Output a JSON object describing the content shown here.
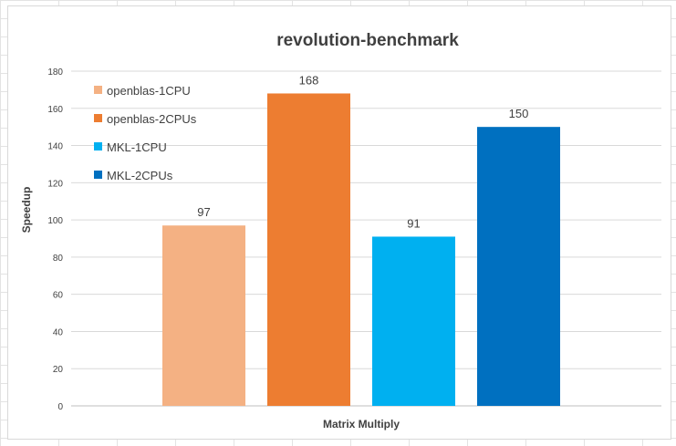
{
  "chart_data": {
    "type": "bar",
    "title": "revolution-benchmark",
    "xlabel": "Matrix Multiply",
    "ylabel": "Speedup",
    "ylim": [
      0,
      180
    ],
    "yticks": [
      0,
      20,
      40,
      60,
      80,
      100,
      120,
      140,
      160,
      180
    ],
    "grid": true,
    "legend_position": "top-left",
    "categories": [
      "Matrix Multiply"
    ],
    "series": [
      {
        "name": "openblas-1CPU",
        "values": [
          97
        ],
        "color": "#F4B183"
      },
      {
        "name": "openblas-2CPUs",
        "values": [
          168
        ],
        "color": "#ED7D31"
      },
      {
        "name": "MKL-1CPU",
        "values": [
          91
        ],
        "color": "#00B0F0"
      },
      {
        "name": "MKL-2CPUs",
        "values": [
          150
        ],
        "color": "#0070C0"
      }
    ]
  }
}
